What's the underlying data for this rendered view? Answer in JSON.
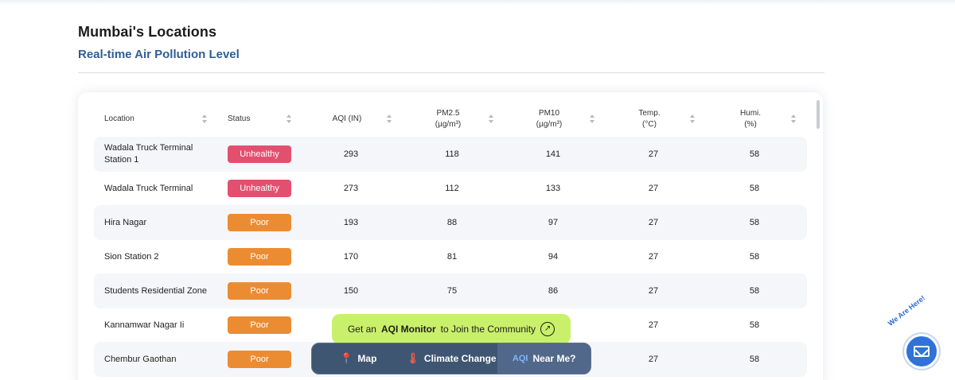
{
  "page": {
    "title": "Mumbai's Locations",
    "subtitle": "Real-time Air Pollution Level"
  },
  "table": {
    "columns": [
      {
        "label": "Location"
      },
      {
        "label": "Status"
      },
      {
        "label": "AQI (IN)"
      },
      {
        "label": "PM2.5\n(µg/m³)"
      },
      {
        "label": "PM10\n(µg/m³)"
      },
      {
        "label": "Temp.\n(°C)"
      },
      {
        "label": "Humi.\n(%)"
      }
    ],
    "rows": [
      {
        "location": "Wadala Truck Terminal Station 1",
        "status": "Unhealthy",
        "status_color": "#e3506f",
        "aqi": "293",
        "pm25": "118",
        "pm10": "141",
        "temp": "27",
        "humi": "58"
      },
      {
        "location": "Wadala Truck Terminal",
        "status": "Unhealthy",
        "status_color": "#e3506f",
        "aqi": "273",
        "pm25": "112",
        "pm10": "133",
        "temp": "27",
        "humi": "58"
      },
      {
        "location": "Hira Nagar",
        "status": "Poor",
        "status_color": "#ec8c32",
        "aqi": "193",
        "pm25": "88",
        "pm10": "97",
        "temp": "27",
        "humi": "58"
      },
      {
        "location": "Sion Station 2",
        "status": "Poor",
        "status_color": "#ec8c32",
        "aqi": "170",
        "pm25": "81",
        "pm10": "94",
        "temp": "27",
        "humi": "58"
      },
      {
        "location": "Students Residential Zone",
        "status": "Poor",
        "status_color": "#ec8c32",
        "aqi": "150",
        "pm25": "75",
        "pm10": "86",
        "temp": "27",
        "humi": "58"
      },
      {
        "location": "Kannamwar Nagar Ii",
        "status": "Poor",
        "status_color": "#ec8c32",
        "aqi": "",
        "pm25": "",
        "pm10": "",
        "temp": "27",
        "humi": "58"
      },
      {
        "location": "Chembur Gaothan",
        "status": "Poor",
        "status_color": "#ec8c32",
        "aqi": "",
        "pm25": "",
        "pm10": "",
        "temp": "27",
        "humi": "58"
      }
    ]
  },
  "promo": {
    "prefix": "Get an",
    "bold": "AQI Monitor",
    "suffix": "to Join the Community",
    "icon": "arrow-up-right-icon",
    "color": "#c9f06a"
  },
  "bottom_nav": [
    {
      "label": "Map",
      "icon": "map-pin-icon"
    },
    {
      "label": "Climate Change",
      "icon": "thermometer-icon"
    },
    {
      "label": "Near Me?",
      "icon": "aqi-icon",
      "active": true
    }
  ],
  "contact": {
    "label": "We Are Here!",
    "icon": "mail-icon"
  }
}
